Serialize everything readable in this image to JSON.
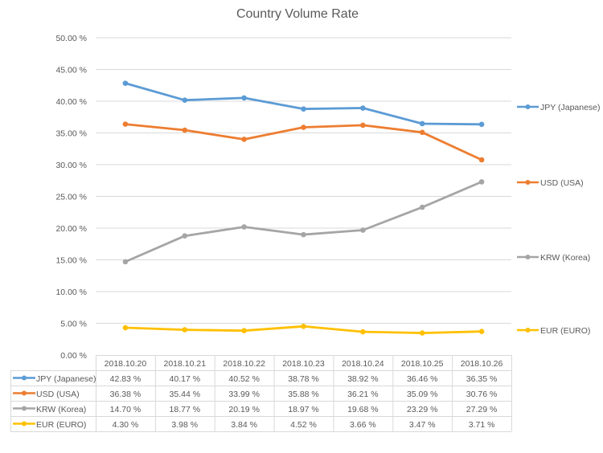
{
  "chart_data": {
    "type": "line",
    "title": "Country Volume Rate",
    "xlabel": "",
    "ylabel": "",
    "ylim": [
      0,
      50
    ],
    "yticks": [
      "0.00 %",
      "5.00 %",
      "10.00 %",
      "15.00 %",
      "20.00 %",
      "25.00 %",
      "30.00 %",
      "35.00 %",
      "40.00 %",
      "45.00 %",
      "50.00 %"
    ],
    "ytick_values": [
      0,
      5,
      10,
      15,
      20,
      25,
      30,
      35,
      40,
      45,
      50
    ],
    "grid": true,
    "legend_position": "right",
    "categories": [
      "2018.10.20",
      "2018.10.21",
      "2018.10.22",
      "2018.10.23",
      "2018.10.24",
      "2018.10.25",
      "2018.10.26"
    ],
    "series": [
      {
        "name": "JPY (Japanese)",
        "color": "#5b9bd5",
        "values": [
          42.83,
          40.17,
          40.52,
          38.78,
          38.92,
          36.46,
          36.35
        ],
        "labels": [
          "42.83 %",
          "40.17 %",
          "40.52 %",
          "38.78 %",
          "38.92 %",
          "36.46 %",
          "36.35 %"
        ]
      },
      {
        "name": "USD (USA)",
        "color": "#ed7d31",
        "values": [
          36.38,
          35.44,
          33.99,
          35.88,
          36.21,
          35.09,
          30.76
        ],
        "labels": [
          "36.38 %",
          "35.44 %",
          "33.99 %",
          "35.88 %",
          "36.21 %",
          "35.09 %",
          "30.76 %"
        ]
      },
      {
        "name": "KRW (Korea)",
        "color": "#a5a5a5",
        "values": [
          14.7,
          18.77,
          20.19,
          18.97,
          19.68,
          23.29,
          27.29
        ],
        "labels": [
          "14.70 %",
          "18.77 %",
          "20.19 %",
          "18.97 %",
          "19.68 %",
          "23.29 %",
          "27.29 %"
        ]
      },
      {
        "name": "EUR (EURO)",
        "color": "#ffc000",
        "values": [
          4.3,
          3.98,
          3.84,
          4.52,
          3.66,
          3.47,
          3.71
        ],
        "labels": [
          "4.30 %",
          "3.98 %",
          "3.84 %",
          "4.52 %",
          "3.66 %",
          "3.47 %",
          "3.71 %"
        ]
      }
    ]
  }
}
